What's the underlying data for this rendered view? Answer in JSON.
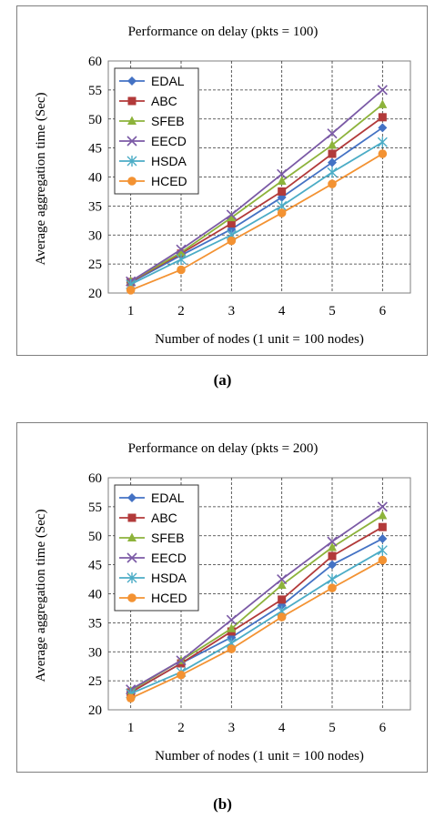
{
  "colors": {
    "EDAL": "#4472C4",
    "ABC": "#B23A3A",
    "SFEB": "#8DB33B",
    "EECD": "#7B5AA6",
    "HSDA": "#4BACC6",
    "HCED": "#F39232"
  },
  "markers": {
    "EDAL": "diamond",
    "ABC": "square",
    "SFEB": "triangle",
    "EECD": "x",
    "HSDA": "star",
    "HCED": "circle"
  },
  "chart_data": [
    {
      "type": "line",
      "panel_label": "(a)",
      "title": "Performance on delay (pkts = 100)",
      "xlabel": "Number of nodes (1 unit = 100 nodes)",
      "ylabel": "Average aggregation time (Sec)",
      "x": [
        1,
        2,
        3,
        4,
        5,
        6
      ],
      "xlim": [
        1,
        6
      ],
      "ylim": [
        20,
        60
      ],
      "yticks": [
        20,
        25,
        30,
        35,
        40,
        45,
        50,
        55,
        60
      ],
      "grid": true,
      "legend_position": "top-left",
      "series": [
        {
          "name": "EDAL",
          "values": [
            21.8,
            26.5,
            31.0,
            36.5,
            42.5,
            48.5
          ]
        },
        {
          "name": "ABC",
          "values": [
            21.9,
            26.8,
            32.0,
            37.5,
            44.0,
            50.3
          ]
        },
        {
          "name": "SFEB",
          "values": [
            22.0,
            27.0,
            33.0,
            39.3,
            45.5,
            52.5
          ]
        },
        {
          "name": "EECD",
          "values": [
            22.0,
            27.5,
            33.5,
            40.5,
            47.5,
            55.0
          ]
        },
        {
          "name": "HSDA",
          "values": [
            21.5,
            25.8,
            30.0,
            35.0,
            40.8,
            46.0
          ]
        },
        {
          "name": "HCED",
          "values": [
            20.5,
            24.0,
            29.0,
            33.8,
            38.8,
            44.0
          ]
        }
      ]
    },
    {
      "type": "line",
      "panel_label": "(b)",
      "title": "Performance on delay (pkts = 200)",
      "xlabel": "Number of nodes (1 unit = 100 nodes)",
      "ylabel": "Average aggregation time (Sec)",
      "x": [
        1,
        2,
        3,
        4,
        5,
        6
      ],
      "xlim": [
        1,
        6
      ],
      "ylim": [
        20,
        60
      ],
      "yticks": [
        20,
        25,
        30,
        35,
        40,
        45,
        50,
        55,
        60
      ],
      "grid": true,
      "legend_position": "top-left",
      "series": [
        {
          "name": "EDAL",
          "values": [
            23.0,
            28.0,
            32.5,
            38.0,
            45.0,
            49.5
          ]
        },
        {
          "name": "ABC",
          "values": [
            23.0,
            28.0,
            33.5,
            39.0,
            46.5,
            51.5
          ]
        },
        {
          "name": "SFEB",
          "values": [
            23.3,
            28.5,
            34.0,
            41.5,
            48.0,
            53.5
          ]
        },
        {
          "name": "EECD",
          "values": [
            23.5,
            28.5,
            35.5,
            42.5,
            49.0,
            55.0
          ]
        },
        {
          "name": "HSDA",
          "values": [
            22.8,
            26.5,
            31.5,
            37.0,
            42.5,
            47.5
          ]
        },
        {
          "name": "HCED",
          "values": [
            22.0,
            26.0,
            30.5,
            36.0,
            41.0,
            45.8
          ]
        }
      ]
    }
  ]
}
